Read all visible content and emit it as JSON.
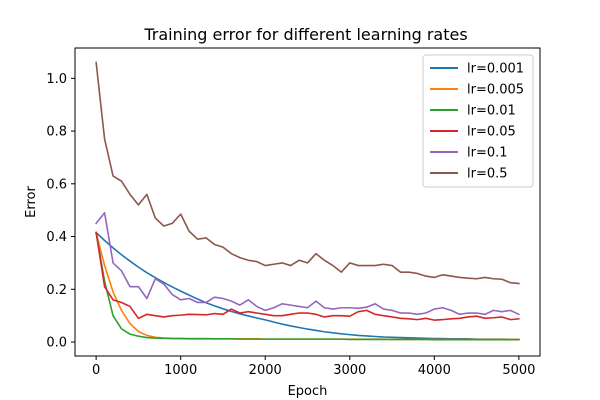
{
  "chart_data": {
    "type": "line",
    "title": "Training error for different learning rates",
    "xlabel": "Epoch",
    "ylabel": "Error",
    "xlim": [
      -250,
      5250
    ],
    "ylim": [
      -0.053,
      1.115
    ],
    "xticks": [
      0,
      1000,
      2000,
      3000,
      4000,
      5000
    ],
    "xtick_labels": [
      "0",
      "1000",
      "2000",
      "3000",
      "4000",
      "5000"
    ],
    "yticks": [
      0.0,
      0.2,
      0.4,
      0.6,
      0.8,
      1.0
    ],
    "ytick_labels": [
      "0.0",
      "0.2",
      "0.4",
      "0.6",
      "0.8",
      "1.0"
    ],
    "grid": false,
    "legend_position": "top-right",
    "x": [
      0,
      100,
      200,
      300,
      400,
      500,
      600,
      700,
      800,
      900,
      1000,
      1100,
      1200,
      1300,
      1400,
      1500,
      1600,
      1700,
      1800,
      1900,
      2000,
      2100,
      2200,
      2300,
      2400,
      2500,
      2600,
      2700,
      2800,
      2900,
      3000,
      3100,
      3200,
      3300,
      3400,
      3500,
      3600,
      3700,
      3800,
      3900,
      4000,
      4100,
      4200,
      4300,
      4400,
      4500,
      4600,
      4700,
      4800,
      4900,
      5000
    ],
    "series": [
      {
        "name": "lr=0.001",
        "color": "#1f77b4",
        "values": [
          0.415,
          0.385,
          0.357,
          0.331,
          0.307,
          0.284,
          0.263,
          0.244,
          0.226,
          0.209,
          0.193,
          0.178,
          0.163,
          0.149,
          0.137,
          0.126,
          0.116,
          0.107,
          0.099,
          0.091,
          0.084,
          0.076,
          0.068,
          0.061,
          0.055,
          0.049,
          0.044,
          0.039,
          0.035,
          0.031,
          0.028,
          0.025,
          0.023,
          0.021,
          0.019,
          0.018,
          0.017,
          0.016,
          0.015,
          0.014,
          0.013,
          0.013,
          0.012,
          0.012,
          0.012,
          0.011,
          0.011,
          0.011,
          0.011,
          0.01,
          0.01
        ]
      },
      {
        "name": "lr=0.005",
        "color": "#ff7f0e",
        "values": [
          0.415,
          0.29,
          0.19,
          0.12,
          0.07,
          0.04,
          0.025,
          0.018,
          0.015,
          0.014,
          0.013,
          0.013,
          0.013,
          0.013,
          0.012,
          0.012,
          0.012,
          0.012,
          0.012,
          0.012,
          0.011,
          0.011,
          0.011,
          0.011,
          0.011,
          0.011,
          0.011,
          0.011,
          0.011,
          0.011,
          0.011,
          0.011,
          0.011,
          0.011,
          0.011,
          0.01,
          0.01,
          0.01,
          0.01,
          0.01,
          0.01,
          0.01,
          0.01,
          0.01,
          0.01,
          0.01,
          0.01,
          0.01,
          0.01,
          0.01,
          0.01
        ]
      },
      {
        "name": "lr=0.01",
        "color": "#2ca02c",
        "values": [
          0.415,
          0.23,
          0.1,
          0.05,
          0.03,
          0.022,
          0.017,
          0.015,
          0.014,
          0.013,
          0.013,
          0.012,
          0.012,
          0.012,
          0.012,
          0.012,
          0.012,
          0.011,
          0.011,
          0.011,
          0.011,
          0.011,
          0.011,
          0.011,
          0.011,
          0.011,
          0.011,
          0.011,
          0.011,
          0.011,
          0.01,
          0.01,
          0.01,
          0.01,
          0.01,
          0.01,
          0.01,
          0.01,
          0.01,
          0.01,
          0.009,
          0.009,
          0.009,
          0.009,
          0.009,
          0.009,
          0.009,
          0.009,
          0.009,
          0.009,
          0.009
        ]
      },
      {
        "name": "lr=0.05",
        "color": "#d62728",
        "values": [
          0.415,
          0.21,
          0.16,
          0.15,
          0.135,
          0.09,
          0.105,
          0.1,
          0.095,
          0.1,
          0.102,
          0.105,
          0.104,
          0.103,
          0.108,
          0.105,
          0.125,
          0.11,
          0.115,
          0.11,
          0.105,
          0.1,
          0.1,
          0.105,
          0.11,
          0.11,
          0.105,
          0.095,
          0.1,
          0.1,
          0.098,
          0.115,
          0.12,
          0.105,
          0.1,
          0.095,
          0.09,
          0.088,
          0.085,
          0.09,
          0.083,
          0.085,
          0.088,
          0.09,
          0.095,
          0.098,
          0.09,
          0.092,
          0.095,
          0.085,
          0.088
        ]
      },
      {
        "name": "lr=0.1",
        "color": "#9467bd",
        "values": [
          0.45,
          0.49,
          0.3,
          0.27,
          0.21,
          0.21,
          0.165,
          0.24,
          0.22,
          0.18,
          0.16,
          0.165,
          0.15,
          0.15,
          0.17,
          0.165,
          0.155,
          0.14,
          0.16,
          0.135,
          0.12,
          0.13,
          0.145,
          0.14,
          0.135,
          0.13,
          0.155,
          0.13,
          0.125,
          0.13,
          0.13,
          0.128,
          0.132,
          0.145,
          0.125,
          0.12,
          0.11,
          0.11,
          0.105,
          0.11,
          0.125,
          0.13,
          0.12,
          0.105,
          0.11,
          0.11,
          0.105,
          0.12,
          0.115,
          0.12,
          0.105
        ]
      },
      {
        "name": "lr=0.5",
        "color": "#8c564b",
        "values": [
          1.06,
          0.77,
          0.63,
          0.61,
          0.56,
          0.52,
          0.56,
          0.47,
          0.44,
          0.45,
          0.485,
          0.42,
          0.39,
          0.395,
          0.37,
          0.36,
          0.335,
          0.32,
          0.31,
          0.305,
          0.29,
          0.295,
          0.3,
          0.29,
          0.31,
          0.3,
          0.335,
          0.31,
          0.29,
          0.265,
          0.3,
          0.29,
          0.29,
          0.29,
          0.295,
          0.29,
          0.265,
          0.265,
          0.26,
          0.25,
          0.245,
          0.255,
          0.25,
          0.245,
          0.242,
          0.24,
          0.245,
          0.24,
          0.238,
          0.225,
          0.222
        ]
      }
    ]
  }
}
